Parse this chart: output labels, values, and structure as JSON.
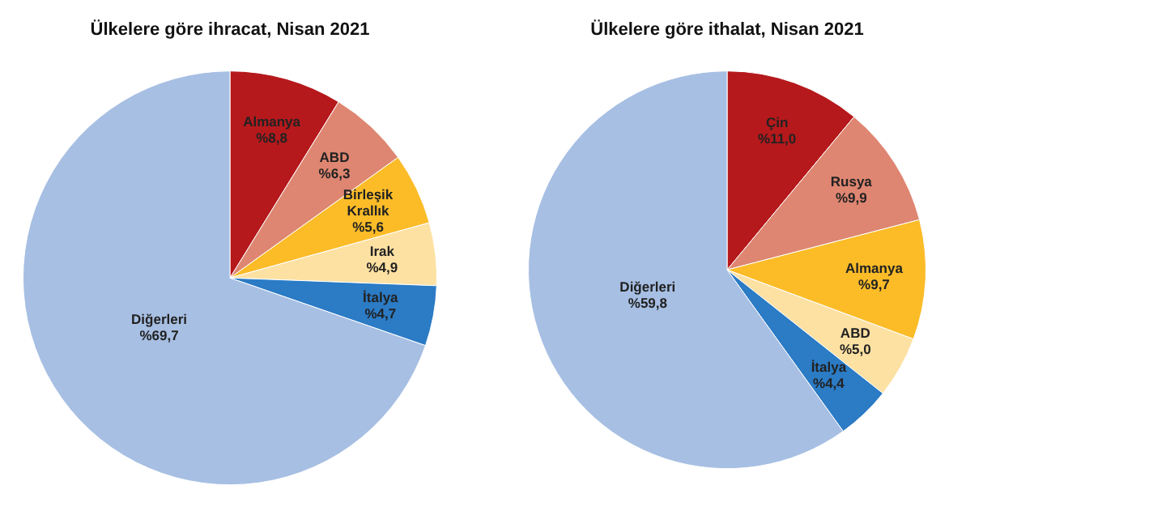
{
  "chart_data": [
    {
      "type": "pie",
      "title": "Ülkelere göre ihracat, Nisan 2021",
      "categories": [
        "Almanya",
        "ABD",
        "Birleşik Krallık",
        "Irak",
        "İtalya",
        "Diğerleri"
      ],
      "values": [
        8.8,
        6.3,
        5.6,
        4.9,
        4.7,
        69.7
      ],
      "value_labels": [
        "%8,8",
        "%6,3",
        "%5,6",
        "%4,9",
        "%4,7",
        "%69,7"
      ],
      "colors": [
        "#b5191c",
        "#de8671",
        "#fbbc28",
        "#fde1a3",
        "#2b7bc5",
        "#a7bfe3"
      ],
      "legend": false
    },
    {
      "type": "pie",
      "title": "Ülkelere göre ithalat, Nisan 2021",
      "categories": [
        "Çin",
        "Rusya",
        "Almanya",
        "ABD",
        "İtalya",
        "Diğerleri"
      ],
      "values": [
        11.0,
        9.9,
        9.7,
        5.0,
        4.4,
        59.8
      ],
      "value_labels": [
        "%11,0",
        "%9,9",
        "%9,7",
        "%5,0",
        "%4,4",
        "%59,8"
      ],
      "colors": [
        "#b5191c",
        "#de8671",
        "#fbbc28",
        "#fde1a3",
        "#2b7bc5",
        "#a7bfe3"
      ],
      "legend": false
    }
  ]
}
